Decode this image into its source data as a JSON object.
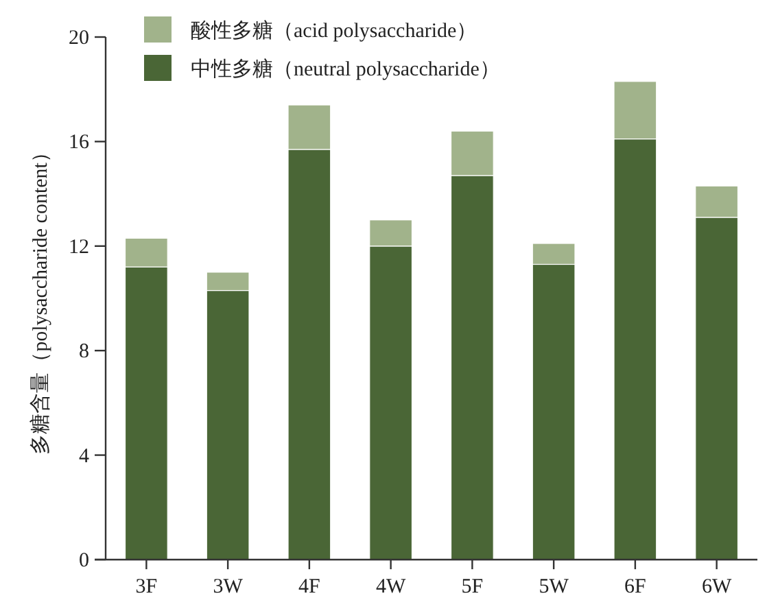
{
  "chart_data": {
    "type": "bar",
    "stacked": true,
    "ylabel": "多糖含量（polysaccharide content）",
    "categories": [
      "3F",
      "3W",
      "4F",
      "4W",
      "5F",
      "5W",
      "6F",
      "6W"
    ],
    "series": [
      {
        "name": "中性多糖（neutral polysaccharide）",
        "color": "#4a6636",
        "values": [
          11.2,
          10.3,
          15.7,
          12.0,
          14.7,
          11.3,
          16.1,
          13.1
        ]
      },
      {
        "name": "酸性多糖（acid polysaccharide）",
        "color": "#a1b38b",
        "values": [
          1.1,
          0.7,
          1.7,
          1.0,
          1.7,
          0.8,
          2.2,
          1.2
        ]
      }
    ],
    "ylim": [
      0,
      20
    ],
    "yticks": [
      0,
      4,
      8,
      12,
      16,
      20
    ],
    "grid": false,
    "legend": "top left"
  }
}
